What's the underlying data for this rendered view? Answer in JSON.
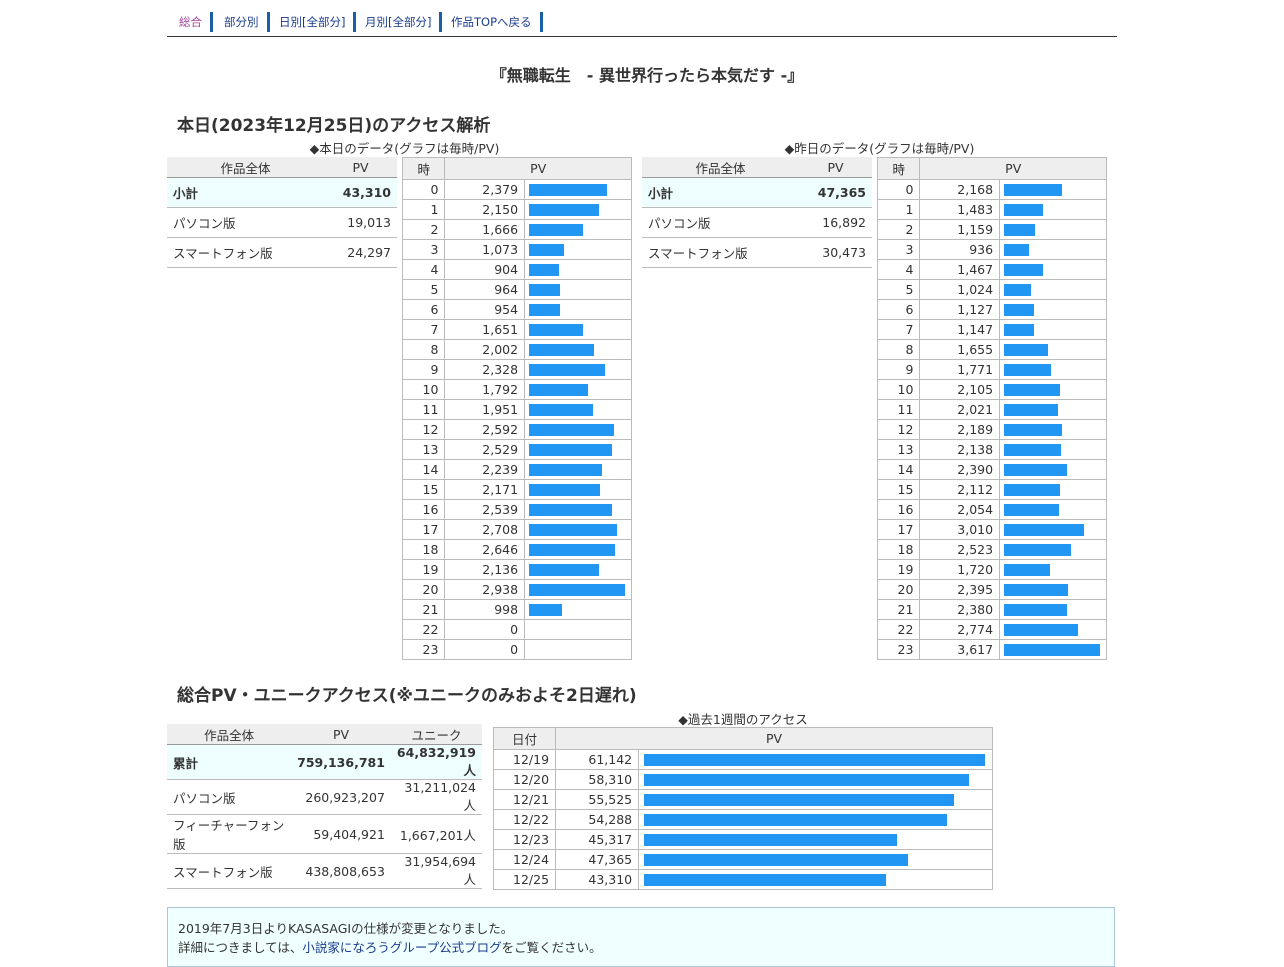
{
  "nav": [
    {
      "label": "総合",
      "current": true
    },
    {
      "label": "部分別",
      "current": false
    },
    {
      "label": "日別[全部分]",
      "current": false
    },
    {
      "label": "月別[全部分]",
      "current": false
    },
    {
      "label": "作品TOPへ戻る",
      "current": false
    }
  ],
  "work_title": "『無職転生　- 異世界行ったら本気だす -』",
  "today_heading": "本日(2023年12月25日)のアクセス解析",
  "today_caption": "◆本日のデータ(グラフは毎時/PV)",
  "yesterday_caption": "◆昨日のデータ(グラフは毎時/PV)",
  "summary_headers": {
    "label": "作品全体",
    "pv": "PV"
  },
  "hourly_headers": {
    "hour": "時",
    "pv": "PV"
  },
  "today_summary": [
    {
      "label": "小計",
      "pv": "43,310"
    },
    {
      "label": "パソコン版",
      "pv": "19,013"
    },
    {
      "label": "スマートフォン版",
      "pv": "24,297"
    }
  ],
  "yesterday_summary": [
    {
      "label": "小計",
      "pv": "47,365"
    },
    {
      "label": "パソコン版",
      "pv": "16,892"
    },
    {
      "label": "スマートフォン版",
      "pv": "30,473"
    }
  ],
  "today_hourly": [
    2379,
    2150,
    1666,
    1073,
    904,
    964,
    954,
    1651,
    2002,
    2328,
    1792,
    1951,
    2592,
    2529,
    2239,
    2171,
    2539,
    2708,
    2646,
    2136,
    2938,
    998,
    0,
    0
  ],
  "yesterday_hourly": [
    2168,
    1483,
    1159,
    936,
    1467,
    1024,
    1127,
    1147,
    1655,
    1771,
    2105,
    2021,
    2189,
    2138,
    2390,
    2112,
    2054,
    3010,
    2523,
    1720,
    2395,
    2380,
    2774,
    3617
  ],
  "total_heading": "総合PV・ユニークアクセス(※ユニークのみおよそ2日遅れ)",
  "total_headers": {
    "label": "作品全体",
    "pv": "PV",
    "unique": "ユニーク"
  },
  "total_summary": [
    {
      "label": "累計",
      "pv": "759,136,781",
      "unique": "64,832,919人"
    },
    {
      "label": "パソコン版",
      "pv": "260,923,207",
      "unique": "31,211,024人"
    },
    {
      "label": "フィーチャーフォン版",
      "pv": "59,404,921",
      "unique": "1,667,201人"
    },
    {
      "label": "スマートフォン版",
      "pv": "438,808,653",
      "unique": "31,954,694人"
    }
  ],
  "week_caption": "◆過去1週間のアクセス",
  "week_headers": {
    "date": "日付",
    "pv": "PV"
  },
  "week": [
    {
      "date": "12/19",
      "pv": 61142
    },
    {
      "date": "12/20",
      "pv": 58310
    },
    {
      "date": "12/21",
      "pv": 55525
    },
    {
      "date": "12/22",
      "pv": 54288
    },
    {
      "date": "12/23",
      "pv": 45317
    },
    {
      "date": "12/24",
      "pv": 47365
    },
    {
      "date": "12/25",
      "pv": 43310
    }
  ],
  "notice": {
    "line1": "2019年7月3日よりKASASAGIの仕様が変更となりました。",
    "line2_pre": "詳細につきましては、",
    "line2_link": "小説家になろうグループ公式ブログ",
    "line2_post": "をご覧ください。"
  },
  "colors": {
    "bar": "#2196f3",
    "link": "#1a3b8c",
    "nav_current": "#a0459a",
    "total_row_bg": "#eefeff"
  }
}
